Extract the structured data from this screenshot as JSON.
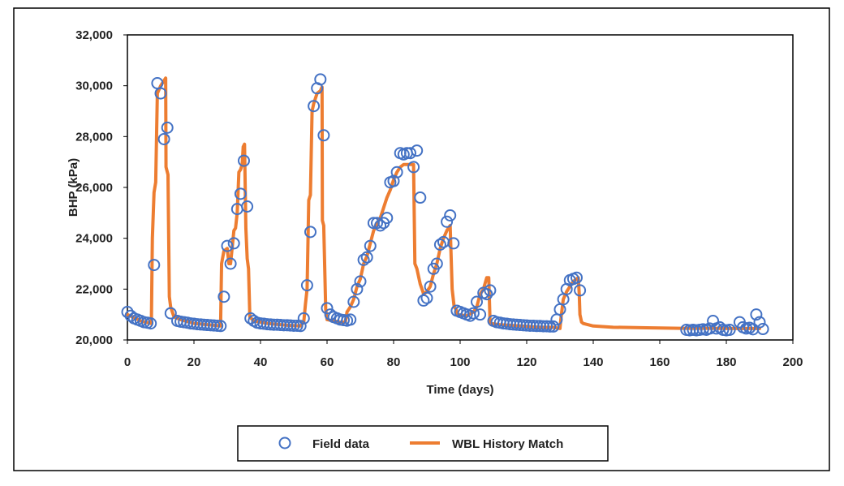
{
  "chart_data": {
    "type": "line",
    "title": "",
    "xlabel": "Time (days)",
    "ylabel": "BHP (kPa)",
    "xlim": [
      0,
      200
    ],
    "ylim": [
      20000,
      32000
    ],
    "x_ticks": [
      0,
      20,
      40,
      60,
      80,
      100,
      120,
      140,
      160,
      180,
      200
    ],
    "y_ticks": [
      20000,
      22000,
      24000,
      26000,
      28000,
      30000,
      32000
    ],
    "x_tick_labels": [
      "0",
      "20",
      "40",
      "60",
      "80",
      "100",
      "120",
      "140",
      "160",
      "180",
      "200"
    ],
    "y_tick_labels": [
      "20,000",
      "22,000",
      "24,000",
      "26,000",
      "28,000",
      "30,000",
      "32,000"
    ],
    "grid": false,
    "legend_position": "bottom",
    "series": [
      {
        "name": "Field data",
        "style": "markers",
        "color": "#4472C4",
        "points": [
          [
            0,
            21100
          ],
          [
            1,
            20950
          ],
          [
            2,
            20850
          ],
          [
            3,
            20800
          ],
          [
            4,
            20750
          ],
          [
            5,
            20700
          ],
          [
            6,
            20680
          ],
          [
            7,
            20650
          ],
          [
            8,
            22950
          ],
          [
            9,
            30100
          ],
          [
            10,
            29700
          ],
          [
            11,
            27900
          ],
          [
            12,
            28350
          ],
          [
            13,
            21050
          ],
          [
            15,
            20750
          ],
          [
            16,
            20720
          ],
          [
            17,
            20700
          ],
          [
            18,
            20680
          ],
          [
            19,
            20650
          ],
          [
            20,
            20640
          ],
          [
            21,
            20620
          ],
          [
            22,
            20610
          ],
          [
            23,
            20600
          ],
          [
            24,
            20590
          ],
          [
            25,
            20580
          ],
          [
            26,
            20570
          ],
          [
            27,
            20560
          ],
          [
            28,
            20550
          ],
          [
            29,
            21700
          ],
          [
            30,
            23700
          ],
          [
            31,
            23000
          ],
          [
            32,
            23800
          ],
          [
            33,
            25150
          ],
          [
            34,
            25750
          ],
          [
            35,
            27050
          ],
          [
            36,
            25250
          ],
          [
            37,
            20850
          ],
          [
            38,
            20750
          ],
          [
            39,
            20680
          ],
          [
            40,
            20650
          ],
          [
            41,
            20640
          ],
          [
            42,
            20620
          ],
          [
            43,
            20610
          ],
          [
            44,
            20600
          ],
          [
            45,
            20600
          ],
          [
            46,
            20590
          ],
          [
            47,
            20580
          ],
          [
            48,
            20580
          ],
          [
            49,
            20570
          ],
          [
            50,
            20560
          ],
          [
            51,
            20560
          ],
          [
            52,
            20550
          ],
          [
            53,
            20850
          ],
          [
            54,
            22150
          ],
          [
            55,
            24250
          ],
          [
            56,
            29200
          ],
          [
            57,
            29900
          ],
          [
            58,
            30250
          ],
          [
            59,
            28050
          ],
          [
            60,
            21250
          ],
          [
            61,
            21000
          ],
          [
            62,
            20900
          ],
          [
            63,
            20850
          ],
          [
            64,
            20800
          ],
          [
            65,
            20780
          ],
          [
            66,
            20760
          ],
          [
            67,
            20800
          ],
          [
            68,
            21500
          ],
          [
            69,
            22000
          ],
          [
            70,
            22300
          ],
          [
            71,
            23150
          ],
          [
            72,
            23250
          ],
          [
            73,
            23700
          ],
          [
            74,
            24600
          ],
          [
            75,
            24600
          ],
          [
            76,
            24500
          ],
          [
            77,
            24600
          ],
          [
            78,
            24800
          ],
          [
            79,
            26200
          ],
          [
            80,
            26250
          ],
          [
            81,
            26600
          ],
          [
            82,
            27350
          ],
          [
            83,
            27300
          ],
          [
            84,
            27350
          ],
          [
            85,
            27350
          ],
          [
            86,
            26800
          ],
          [
            87,
            27450
          ],
          [
            88,
            25600
          ],
          [
            89,
            21550
          ],
          [
            90,
            21650
          ],
          [
            91,
            22100
          ],
          [
            92,
            22800
          ],
          [
            93,
            23000
          ],
          [
            94,
            23750
          ],
          [
            95,
            23850
          ],
          [
            96,
            24650
          ],
          [
            97,
            24900
          ],
          [
            98,
            23800
          ],
          [
            99,
            21150
          ],
          [
            100,
            21100
          ],
          [
            101,
            21050
          ],
          [
            102,
            21000
          ],
          [
            103,
            20950
          ],
          [
            104,
            21050
          ],
          [
            105,
            21500
          ],
          [
            106,
            21000
          ],
          [
            107,
            21850
          ],
          [
            108,
            21800
          ],
          [
            109,
            21950
          ],
          [
            110,
            20750
          ],
          [
            111,
            20700
          ],
          [
            112,
            20680
          ],
          [
            113,
            20650
          ],
          [
            114,
            20640
          ],
          [
            115,
            20620
          ],
          [
            116,
            20610
          ],
          [
            117,
            20600
          ],
          [
            118,
            20590
          ],
          [
            119,
            20580
          ],
          [
            120,
            20570
          ],
          [
            121,
            20560
          ],
          [
            122,
            20560
          ],
          [
            123,
            20550
          ],
          [
            124,
            20550
          ],
          [
            125,
            20540
          ],
          [
            126,
            20540
          ],
          [
            127,
            20530
          ],
          [
            128,
            20530
          ],
          [
            129,
            20800
          ],
          [
            130,
            21200
          ],
          [
            131,
            21600
          ],
          [
            132,
            22000
          ],
          [
            133,
            22350
          ],
          [
            134,
            22400
          ],
          [
            135,
            22450
          ],
          [
            136,
            21950
          ],
          [
            168,
            20400
          ],
          [
            169,
            20380
          ],
          [
            170,
            20400
          ],
          [
            171,
            20380
          ],
          [
            172,
            20400
          ],
          [
            173,
            20420
          ],
          [
            174,
            20400
          ],
          [
            175,
            20450
          ],
          [
            176,
            20750
          ],
          [
            177,
            20450
          ],
          [
            178,
            20500
          ],
          [
            179,
            20400
          ],
          [
            180,
            20380
          ],
          [
            181,
            20400
          ],
          [
            184,
            20700
          ],
          [
            185,
            20500
          ],
          [
            186,
            20450
          ],
          [
            187,
            20480
          ],
          [
            188,
            20420
          ],
          [
            189,
            21000
          ],
          [
            190,
            20700
          ],
          [
            191,
            20430
          ]
        ]
      },
      {
        "name": "WBL History Match",
        "style": "line",
        "color": "#ED7D31",
        "points": [
          [
            0,
            21000
          ],
          [
            4,
            20750
          ],
          [
            7,
            20650
          ],
          [
            7.2,
            20650
          ],
          [
            7.5,
            24000
          ],
          [
            8,
            25800
          ],
          [
            8.5,
            26200
          ],
          [
            9,
            29700
          ],
          [
            10,
            30000
          ],
          [
            11.5,
            30300
          ],
          [
            11.6,
            26800
          ],
          [
            12.2,
            26500
          ],
          [
            12.6,
            21700
          ],
          [
            13,
            21300
          ],
          [
            14,
            20900
          ],
          [
            16,
            20800
          ],
          [
            20,
            20650
          ],
          [
            26,
            20580
          ],
          [
            28,
            20550
          ],
          [
            28.3,
            23000
          ],
          [
            29,
            23500
          ],
          [
            30,
            23600
          ],
          [
            30.5,
            23000
          ],
          [
            31,
            23000
          ],
          [
            32,
            24300
          ],
          [
            32.5,
            24400
          ],
          [
            33,
            25000
          ],
          [
            33.5,
            26600
          ],
          [
            34,
            26700
          ],
          [
            34.5,
            26900
          ],
          [
            34.8,
            27600
          ],
          [
            35.2,
            27700
          ],
          [
            35.6,
            24400
          ],
          [
            36,
            23200
          ],
          [
            36.4,
            22800
          ],
          [
            36.8,
            20900
          ],
          [
            38,
            20750
          ],
          [
            42,
            20650
          ],
          [
            48,
            20580
          ],
          [
            52,
            20550
          ],
          [
            53,
            20700
          ],
          [
            53.5,
            21400
          ],
          [
            54,
            22000
          ],
          [
            54.5,
            25500
          ],
          [
            55,
            25700
          ],
          [
            55.5,
            29000
          ],
          [
            56,
            29300
          ],
          [
            56.5,
            29500
          ],
          [
            57,
            29700
          ],
          [
            58,
            29800
          ],
          [
            58.5,
            29950
          ],
          [
            58.6,
            24700
          ],
          [
            59,
            24500
          ],
          [
            59.6,
            21200
          ],
          [
            60,
            20800
          ],
          [
            62,
            20750
          ],
          [
            64,
            20700
          ],
          [
            65.5,
            20700
          ],
          [
            66,
            21100
          ],
          [
            67,
            21300
          ],
          [
            68,
            21600
          ],
          [
            69,
            22100
          ],
          [
            70,
            22400
          ],
          [
            71,
            23000
          ],
          [
            72,
            23300
          ],
          [
            73,
            23800
          ],
          [
            74,
            24300
          ],
          [
            75,
            24600
          ],
          [
            76,
            24800
          ],
          [
            77,
            25200
          ],
          [
            78,
            25600
          ],
          [
            79,
            25900
          ],
          [
            80,
            26300
          ],
          [
            81,
            26600
          ],
          [
            82,
            26800
          ],
          [
            83,
            26900
          ],
          [
            84,
            26900
          ],
          [
            85,
            26900
          ],
          [
            86,
            26900
          ],
          [
            86.4,
            23000
          ],
          [
            87,
            22800
          ],
          [
            88,
            22200
          ],
          [
            88.8,
            21900
          ],
          [
            89,
            21800
          ],
          [
            90,
            21900
          ],
          [
            91,
            22100
          ],
          [
            92,
            22600
          ],
          [
            93,
            23000
          ],
          [
            94,
            23600
          ],
          [
            95,
            24000
          ],
          [
            96,
            24300
          ],
          [
            97,
            24500
          ],
          [
            97.6,
            22000
          ],
          [
            98.2,
            21300
          ],
          [
            98.8,
            21200
          ],
          [
            99,
            21000
          ],
          [
            102,
            20950
          ],
          [
            104,
            21100
          ],
          [
            105,
            21300
          ],
          [
            106,
            21800
          ],
          [
            107,
            22000
          ],
          [
            108,
            22450
          ],
          [
            108.6,
            22450
          ],
          [
            109,
            20650
          ],
          [
            112,
            20600
          ],
          [
            118,
            20550
          ],
          [
            124,
            20500
          ],
          [
            128,
            20500
          ],
          [
            130,
            20450
          ],
          [
            130.3,
            20850
          ],
          [
            131,
            21600
          ],
          [
            132,
            21900
          ],
          [
            133,
            22100
          ],
          [
            134,
            22300
          ],
          [
            135,
            22400
          ],
          [
            135.5,
            22450
          ],
          [
            135.8,
            21800
          ],
          [
            136,
            21000
          ],
          [
            136.5,
            20700
          ],
          [
            137,
            20650
          ],
          [
            140,
            20550
          ],
          [
            146,
            20500
          ],
          [
            156,
            20480
          ],
          [
            166,
            20460
          ],
          [
            175,
            20460
          ],
          [
            185,
            20450
          ],
          [
            190,
            20450
          ]
        ]
      }
    ]
  }
}
